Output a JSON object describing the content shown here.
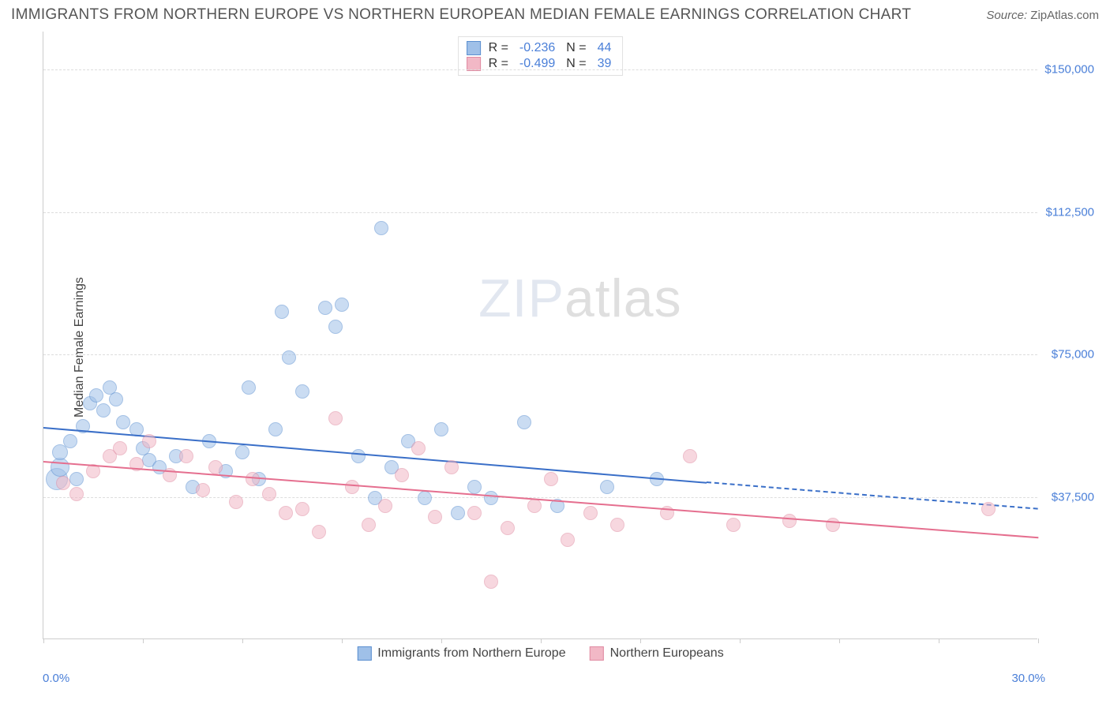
{
  "title": "IMMIGRANTS FROM NORTHERN EUROPE VS NORTHERN EUROPEAN MEDIAN FEMALE EARNINGS CORRELATION CHART",
  "source_label": "Source:",
  "source_value": "ZipAtlas.com",
  "ylabel": "Median Female Earnings",
  "watermark_a": "ZIP",
  "watermark_b": "atlas",
  "chart": {
    "type": "scatter",
    "xlim": [
      0,
      30
    ],
    "ylim": [
      0,
      160000
    ],
    "x_min_label": "0.0%",
    "x_max_label": "30.0%",
    "yticks": [
      37500,
      75000,
      112500,
      150000
    ],
    "ytick_labels": [
      "$37,500",
      "$75,000",
      "$112,500",
      "$150,000"
    ],
    "xtick_positions": [
      0,
      3,
      6,
      9,
      12,
      15,
      18,
      21,
      24,
      27,
      30
    ],
    "grid_color": "#dddddd",
    "axis_color": "#cccccc",
    "background_color": "#ffffff",
    "point_radius": 8,
    "point_opacity": 0.55,
    "series": [
      {
        "name": "Immigrants from Northern Europe",
        "color_fill": "#9fc0e8",
        "color_stroke": "#5b8fd0",
        "reg_color": "#3a6fc8",
        "R": "-0.236",
        "N": "44",
        "regression": {
          "x1": 0,
          "y1": 56000,
          "x2": 20,
          "y2": 41500,
          "x2_dash": 30,
          "y2_dash": 34500
        },
        "points": [
          [
            0.4,
            42000,
            14
          ],
          [
            0.5,
            45000,
            12
          ],
          [
            0.5,
            49000,
            10
          ],
          [
            0.8,
            52000,
            9
          ],
          [
            1.0,
            42000,
            9
          ],
          [
            1.2,
            56000,
            9
          ],
          [
            1.4,
            62000,
            9
          ],
          [
            1.6,
            64000,
            9
          ],
          [
            1.8,
            60000,
            9
          ],
          [
            2.0,
            66000,
            9
          ],
          [
            2.2,
            63000,
            9
          ],
          [
            2.4,
            57000,
            9
          ],
          [
            2.8,
            55000,
            9
          ],
          [
            3.0,
            50000,
            9
          ],
          [
            3.2,
            47000,
            9
          ],
          [
            3.5,
            45000,
            9
          ],
          [
            4.0,
            48000,
            9
          ],
          [
            4.5,
            40000,
            9
          ],
          [
            5.0,
            52000,
            9
          ],
          [
            5.5,
            44000,
            9
          ],
          [
            6.0,
            49000,
            9
          ],
          [
            6.2,
            66000,
            9
          ],
          [
            6.5,
            42000,
            9
          ],
          [
            7.0,
            55000,
            9
          ],
          [
            7.2,
            86000,
            9
          ],
          [
            7.4,
            74000,
            9
          ],
          [
            7.8,
            65000,
            9
          ],
          [
            8.5,
            87000,
            9
          ],
          [
            8.8,
            82000,
            9
          ],
          [
            9.0,
            88000,
            9
          ],
          [
            9.5,
            48000,
            9
          ],
          [
            10.0,
            37000,
            9
          ],
          [
            10.2,
            108000,
            9
          ],
          [
            10.5,
            45000,
            9
          ],
          [
            11.0,
            52000,
            9
          ],
          [
            11.5,
            37000,
            9
          ],
          [
            12.0,
            55000,
            9
          ],
          [
            12.5,
            33000,
            9
          ],
          [
            13.0,
            40000,
            9
          ],
          [
            13.5,
            37000,
            9
          ],
          [
            14.5,
            57000,
            9
          ],
          [
            15.5,
            35000,
            9
          ],
          [
            17.0,
            40000,
            9
          ],
          [
            18.5,
            42000,
            9
          ]
        ]
      },
      {
        "name": "Northern Europeans",
        "color_fill": "#f2b8c6",
        "color_stroke": "#e08ba2",
        "reg_color": "#e56f8f",
        "R": "-0.499",
        "N": "39",
        "regression": {
          "x1": 0,
          "y1": 47000,
          "x2": 30,
          "y2": 27000
        },
        "points": [
          [
            0.6,
            41000,
            9
          ],
          [
            1.0,
            38000,
            9
          ],
          [
            1.5,
            44000,
            9
          ],
          [
            2.0,
            48000,
            9
          ],
          [
            2.3,
            50000,
            9
          ],
          [
            2.8,
            46000,
            9
          ],
          [
            3.2,
            52000,
            9
          ],
          [
            3.8,
            43000,
            9
          ],
          [
            4.3,
            48000,
            9
          ],
          [
            4.8,
            39000,
            9
          ],
          [
            5.2,
            45000,
            9
          ],
          [
            5.8,
            36000,
            9
          ],
          [
            6.3,
            42000,
            9
          ],
          [
            6.8,
            38000,
            9
          ],
          [
            7.3,
            33000,
            9
          ],
          [
            7.8,
            34000,
            9
          ],
          [
            8.3,
            28000,
            9
          ],
          [
            8.8,
            58000,
            9
          ],
          [
            9.3,
            40000,
            9
          ],
          [
            9.8,
            30000,
            9
          ],
          [
            10.3,
            35000,
            9
          ],
          [
            10.8,
            43000,
            9
          ],
          [
            11.3,
            50000,
            9
          ],
          [
            11.8,
            32000,
            9
          ],
          [
            12.3,
            45000,
            9
          ],
          [
            13.0,
            33000,
            9
          ],
          [
            13.5,
            15000,
            9
          ],
          [
            14.0,
            29000,
            9
          ],
          [
            14.8,
            35000,
            9
          ],
          [
            15.3,
            42000,
            9
          ],
          [
            15.8,
            26000,
            9
          ],
          [
            16.5,
            33000,
            9
          ],
          [
            17.3,
            30000,
            9
          ],
          [
            18.8,
            33000,
            9
          ],
          [
            19.5,
            48000,
            9
          ],
          [
            20.8,
            30000,
            9
          ],
          [
            22.5,
            31000,
            9
          ],
          [
            23.8,
            30000,
            9
          ],
          [
            28.5,
            34000,
            9
          ]
        ]
      }
    ]
  },
  "stats_labels": {
    "R": "R =",
    "N": "N ="
  }
}
